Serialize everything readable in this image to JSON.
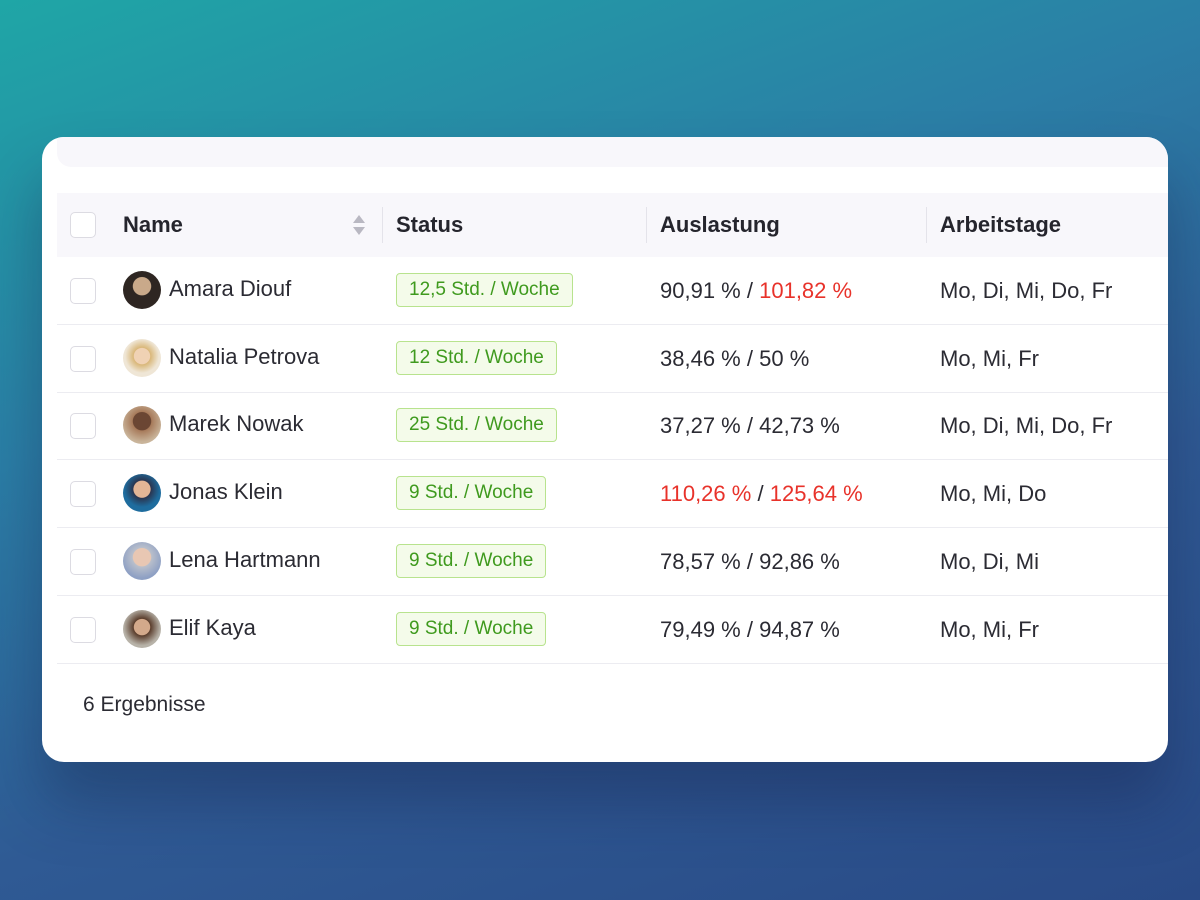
{
  "table": {
    "columns": [
      "Name",
      "Status",
      "Auslastung",
      "Arbeitstage"
    ],
    "separator": "/",
    "rows": [
      {
        "name": "Amara Diouf",
        "status": "12,5 Std. / Woche",
        "utilization": [
          {
            "text": "90,91 %",
            "alert": false
          },
          {
            "text": "101,82 %",
            "alert": true
          }
        ],
        "days": "Mo, Di, Mi, Do, Fr"
      },
      {
        "name": "Natalia Petrova",
        "status": "12 Std. / Woche",
        "utilization": [
          {
            "text": "38,46 %",
            "alert": false
          },
          {
            "text": "50 %",
            "alert": false
          }
        ],
        "days": "Mo, Mi, Fr"
      },
      {
        "name": "Marek Nowak",
        "status": "25 Std. / Woche",
        "utilization": [
          {
            "text": "37,27 %",
            "alert": false
          },
          {
            "text": "42,73 %",
            "alert": false
          }
        ],
        "days": "Mo, Di, Mi, Do, Fr"
      },
      {
        "name": "Jonas Klein",
        "status": "9 Std. / Woche",
        "utilization": [
          {
            "text": "110,26 %",
            "alert": true
          },
          {
            "text": "125,64 %",
            "alert": true
          }
        ],
        "days": "Mo, Mi, Do"
      },
      {
        "name": "Lena Hartmann",
        "status": "9 Std. / Woche",
        "utilization": [
          {
            "text": "78,57 %",
            "alert": false
          },
          {
            "text": "92,86 %",
            "alert": false
          }
        ],
        "days": "Mo, Di, Mi"
      },
      {
        "name": "Elif Kaya",
        "status": "9 Std. / Woche",
        "utilization": [
          {
            "text": "79,49 %",
            "alert": false
          },
          {
            "text": "94,87 %",
            "alert": false
          }
        ],
        "days": "Mo, Mi, Fr"
      }
    ]
  },
  "footer": "6 Ergebnisse"
}
